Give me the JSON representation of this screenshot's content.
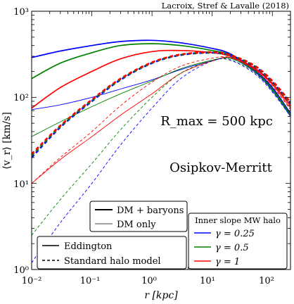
{
  "chart_data": {
    "type": "line",
    "credit": "Lacroix, Stref & Lavalle (2018)",
    "xlabel": "r [kpc]",
    "ylabel": "⟨v_r⟩ [km/s]",
    "xscale": "log",
    "yscale": "log",
    "xlim": [
      0.01,
      200
    ],
    "ylim": [
      1,
      1000
    ],
    "grid": false,
    "x_ticks": [
      "10⁻²",
      "10⁻¹",
      "10⁰",
      "10¹",
      "10²"
    ],
    "y_ticks": [
      "10⁰",
      "10¹",
      "10²",
      "10³"
    ],
    "annotations": {
      "rmax": "R_max = 500 kpc",
      "model": "Osipkov-Merritt"
    },
    "legend_mass": {
      "placement": "bottom-center",
      "entries": [
        {
          "label": "DM + baryons",
          "width": "thick"
        },
        {
          "label": "DM only",
          "width": "thin"
        }
      ]
    },
    "legend_method": {
      "placement": "bottom-left",
      "entries": [
        {
          "label": "Eddington",
          "style": "solid"
        },
        {
          "label": "Standard halo model",
          "style": "dashed"
        }
      ]
    },
    "legend_slope": {
      "placement": "bottom-right",
      "title": "Inner slope MW halo",
      "entries": [
        {
          "label": "γ = 0.25",
          "color": "#0000ff"
        },
        {
          "label": "γ = 0.5",
          "color": "#008000"
        },
        {
          "label": "γ = 1",
          "color": "#ff0000"
        }
      ]
    },
    "series": [
      {
        "gamma": "0.25",
        "color": "#0000ff",
        "kind": "eddington_dm_baryons",
        "x": [
          0.01,
          0.03,
          0.1,
          0.3,
          1,
          3,
          10,
          20,
          50,
          100,
          200
        ],
        "y": [
          290,
          345,
          400,
          445,
          460,
          430,
          370,
          320,
          210,
          130,
          65
        ]
      },
      {
        "gamma": "0.5",
        "color": "#008000",
        "kind": "eddington_dm_baryons",
        "x": [
          0.01,
          0.03,
          0.1,
          0.3,
          1,
          3,
          10,
          20,
          50,
          100,
          200
        ],
        "y": [
          165,
          250,
          330,
          400,
          420,
          400,
          350,
          310,
          205,
          125,
          63
        ]
      },
      {
        "gamma": "1",
        "color": "#ff0000",
        "kind": "eddington_dm_baryons",
        "x": [
          0.01,
          0.03,
          0.1,
          0.3,
          1,
          3,
          10,
          20,
          50,
          100,
          200
        ],
        "y": [
          75,
          130,
          200,
          280,
          340,
          350,
          330,
          300,
          220,
          145,
          80
        ]
      },
      {
        "gamma": "0.25",
        "color": "#0000ff",
        "kind": "eddington_dm_only",
        "x": [
          0.01,
          0.03,
          0.1,
          0.3,
          1,
          3,
          10,
          20,
          50,
          100,
          200
        ],
        "y": [
          72,
          82,
          100,
          125,
          160,
          210,
          265,
          285,
          200,
          120,
          60
        ]
      },
      {
        "gamma": "0.5",
        "color": "#008000",
        "kind": "eddington_dm_only",
        "x": [
          0.01,
          0.03,
          0.1,
          0.3,
          1,
          3,
          10,
          20,
          50,
          100,
          200
        ],
        "y": [
          35,
          52,
          78,
          110,
          155,
          215,
          270,
          285,
          205,
          125,
          62
        ]
      },
      {
        "gamma": "1",
        "color": "#ff0000",
        "kind": "eddington_dm_only",
        "x": [
          0.01,
          0.03,
          0.1,
          0.3,
          1,
          3,
          10,
          20,
          50,
          100,
          200
        ],
        "y": [
          10,
          19,
          35,
          62,
          110,
          190,
          265,
          290,
          215,
          140,
          75
        ]
      },
      {
        "gamma": "0.25",
        "color": "#0000ff",
        "kind": "shm_dm_baryons",
        "x": [
          0.01,
          0.03,
          0.1,
          0.3,
          1,
          3,
          10,
          20,
          50,
          100,
          200
        ],
        "y": [
          20,
          45,
          90,
          160,
          250,
          310,
          330,
          305,
          230,
          150,
          85
        ]
      },
      {
        "gamma": "0.5",
        "color": "#008000",
        "kind": "shm_dm_baryons",
        "x": [
          0.01,
          0.03,
          0.1,
          0.3,
          1,
          3,
          10,
          20,
          50,
          100,
          200
        ],
        "y": [
          21,
          46,
          92,
          162,
          252,
          312,
          332,
          307,
          232,
          152,
          86
        ]
      },
      {
        "gamma": "1",
        "color": "#ff0000",
        "kind": "shm_dm_baryons",
        "x": [
          0.01,
          0.03,
          0.1,
          0.3,
          1,
          3,
          10,
          20,
          50,
          100,
          200
        ],
        "y": [
          22,
          47,
          94,
          165,
          255,
          315,
          335,
          310,
          235,
          155,
          88
        ]
      },
      {
        "gamma": "0.25",
        "color": "#0000ff",
        "kind": "shm_dm_only",
        "x": [
          0.01,
          0.03,
          0.1,
          0.3,
          1,
          3,
          10,
          20,
          50,
          100,
          200
        ],
        "y": [
          1.2,
          3.5,
          10,
          28,
          75,
          165,
          265,
          270,
          190,
          115,
          60
        ]
      },
      {
        "gamma": "0.5",
        "color": "#008000",
        "kind": "shm_dm_only",
        "x": [
          0.01,
          0.03,
          0.1,
          0.3,
          1,
          3,
          10,
          20,
          50,
          100,
          200
        ],
        "y": [
          2.5,
          6.5,
          17,
          42,
          100,
          190,
          270,
          275,
          195,
          118,
          62
        ]
      },
      {
        "gamma": "1",
        "color": "#ff0000",
        "kind": "shm_dm_only",
        "x": [
          0.01,
          0.03,
          0.1,
          0.3,
          1,
          3,
          10,
          20,
          50,
          100,
          200
        ],
        "y": [
          10,
          20,
          40,
          80,
          150,
          230,
          285,
          290,
          210,
          135,
          72
        ]
      }
    ]
  }
}
